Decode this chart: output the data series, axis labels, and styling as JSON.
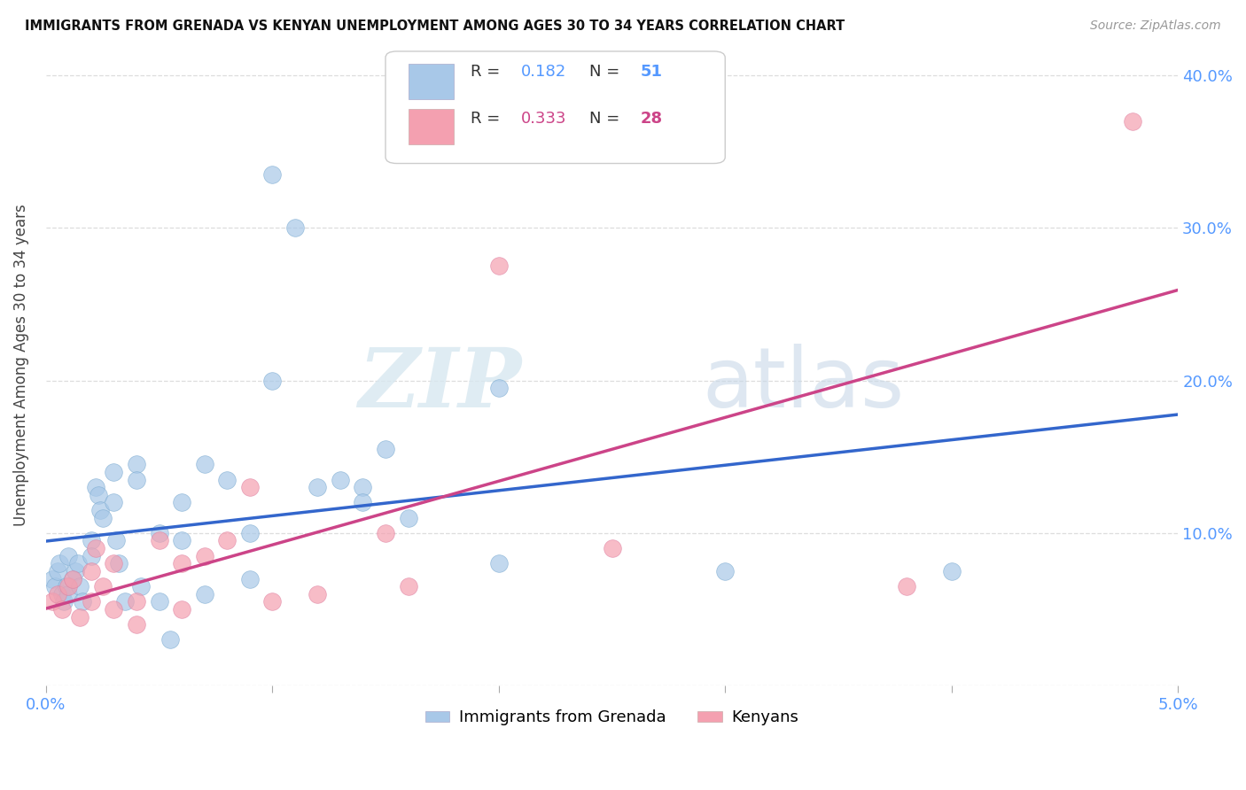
{
  "title": "IMMIGRANTS FROM GRENADA VS KENYAN UNEMPLOYMENT AMONG AGES 30 TO 34 YEARS CORRELATION CHART",
  "source": "Source: ZipAtlas.com",
  "ylabel": "Unemployment Among Ages 30 to 34 years",
  "xlim": [
    0.0,
    0.05
  ],
  "ylim": [
    0.0,
    0.42
  ],
  "xticks": [
    0.0,
    0.01,
    0.02,
    0.03,
    0.04,
    0.05
  ],
  "yticks": [
    0.0,
    0.1,
    0.2,
    0.3,
    0.4
  ],
  "xtick_labels": [
    "0.0%",
    "",
    "",
    "",
    "",
    "5.0%"
  ],
  "ytick_labels": [
    "",
    "10.0%",
    "20.0%",
    "30.0%",
    "40.0%"
  ],
  "blue_R": "0.182",
  "blue_N": "51",
  "pink_R": "0.333",
  "pink_N": "28",
  "blue_color": "#a8c8e8",
  "pink_color": "#f4a0b0",
  "blue_line_color": "#3366cc",
  "pink_line_color": "#cc4488",
  "blue_x": [
    0.0003,
    0.0004,
    0.0005,
    0.0006,
    0.0007,
    0.0008,
    0.0009,
    0.001,
    0.001,
    0.0012,
    0.0013,
    0.0014,
    0.0015,
    0.0016,
    0.002,
    0.002,
    0.0022,
    0.0023,
    0.0024,
    0.0025,
    0.003,
    0.003,
    0.0031,
    0.0032,
    0.0035,
    0.004,
    0.004,
    0.0042,
    0.005,
    0.005,
    0.0055,
    0.006,
    0.006,
    0.007,
    0.007,
    0.008,
    0.009,
    0.009,
    0.01,
    0.01,
    0.011,
    0.012,
    0.013,
    0.014,
    0.015,
    0.016,
    0.014,
    0.02,
    0.02,
    0.03,
    0.04
  ],
  "blue_y": [
    0.07,
    0.065,
    0.075,
    0.08,
    0.06,
    0.055,
    0.065,
    0.085,
    0.06,
    0.07,
    0.075,
    0.08,
    0.065,
    0.055,
    0.095,
    0.085,
    0.13,
    0.125,
    0.115,
    0.11,
    0.14,
    0.12,
    0.095,
    0.08,
    0.055,
    0.145,
    0.135,
    0.065,
    0.1,
    0.055,
    0.03,
    0.12,
    0.095,
    0.145,
    0.06,
    0.135,
    0.1,
    0.07,
    0.2,
    0.335,
    0.3,
    0.13,
    0.135,
    0.13,
    0.155,
    0.11,
    0.12,
    0.195,
    0.08,
    0.075,
    0.075
  ],
  "pink_x": [
    0.0003,
    0.0005,
    0.0007,
    0.001,
    0.0012,
    0.0015,
    0.002,
    0.002,
    0.0022,
    0.0025,
    0.003,
    0.003,
    0.004,
    0.004,
    0.005,
    0.006,
    0.006,
    0.007,
    0.008,
    0.009,
    0.01,
    0.012,
    0.015,
    0.016,
    0.02,
    0.025,
    0.038,
    0.048
  ],
  "pink_y": [
    0.055,
    0.06,
    0.05,
    0.065,
    0.07,
    0.045,
    0.075,
    0.055,
    0.09,
    0.065,
    0.08,
    0.05,
    0.055,
    0.04,
    0.095,
    0.08,
    0.05,
    0.085,
    0.095,
    0.13,
    0.055,
    0.06,
    0.1,
    0.065,
    0.275,
    0.09,
    0.065,
    0.37
  ],
  "watermark_zip": "ZIP",
  "watermark_atlas": "atlas",
  "background_color": "#ffffff",
  "grid_color": "#dddddd",
  "tick_color": "#5599ff"
}
